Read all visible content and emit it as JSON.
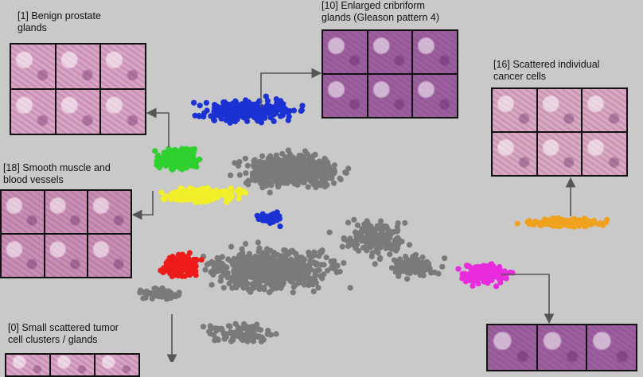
{
  "clusters": [
    {
      "id": "cluster-1",
      "label": "[1] Benign prostate\nglands",
      "color": "#2ed12e",
      "tile_style": "pink"
    },
    {
      "id": "cluster-10",
      "label": "[10] Enlarged cribriform\nglands (Gleason pattern 4)",
      "color": "#1a32d4",
      "tile_style": "purple"
    },
    {
      "id": "cluster-16",
      "label": "[16] Scattered individual\ncancer cells",
      "color": "#f0a21e",
      "tile_style": "mauve"
    },
    {
      "id": "cluster-18",
      "label": "[18] Smooth muscle and\nblood vessels",
      "color": "#f2ee2a",
      "tile_style": "rose"
    },
    {
      "id": "cluster-0",
      "label": "[0] Small scattered tumor\ncell clusters / glands",
      "color": "#ee1b1b",
      "tile_style": "pink"
    },
    {
      "id": "cluster-magenta",
      "label": "",
      "color": "#e82bdc",
      "tile_style": "purple"
    }
  ],
  "colors": {
    "background": "#c9c9c9",
    "other_points": "#7a7a7a",
    "arrow": "#555555",
    "tile_border": "#111111"
  }
}
